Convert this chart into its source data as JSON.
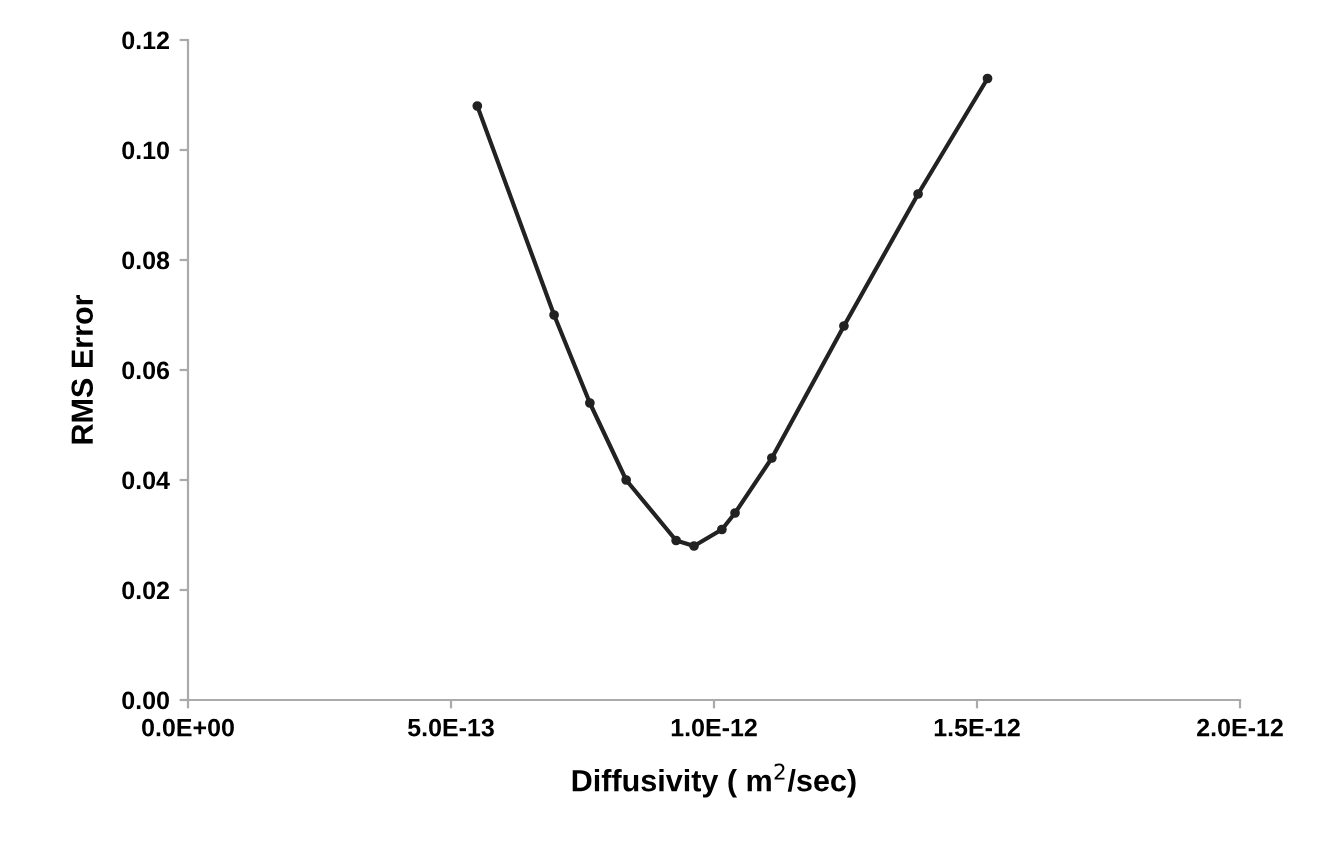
{
  "chart_data": {
    "type": "line",
    "xlabel": "Diffusivity ( m$^{2}$/sec)",
    "ylabel": "RMS Error",
    "x": [
      5.5e-13,
      6.96e-13,
      7.64e-13,
      8.33e-13,
      9.28e-13,
      9.62e-13,
      1.015e-12,
      1.04e-12,
      1.11e-12,
      1.247e-12,
      1.388e-12,
      1.52e-12
    ],
    "series": [
      {
        "color": "#222222",
        "values": [
          0.108,
          0.07,
          0.054,
          0.04,
          0.029,
          0.028,
          0.031,
          0.034,
          0.044,
          0.068,
          0.092,
          0.113
        ]
      }
    ],
    "xlim": [
      0,
      2e-12
    ],
    "xticks": [
      {
        "value": 0,
        "label": "0.0E+00"
      },
      {
        "value": 5e-13,
        "label": "5.0E-13"
      },
      {
        "value": 1e-12,
        "label": "1.0E-12"
      },
      {
        "value": 1.5e-12,
        "label": "1.5E-12"
      },
      {
        "value": 2e-12,
        "label": "2.0E-12"
      }
    ],
    "ylim": [
      0,
      0.12
    ],
    "yticks": [
      {
        "value": 0,
        "label": "0.00"
      },
      {
        "value": 0.02,
        "label": "0.02"
      },
      {
        "value": 0.04,
        "label": "0.04"
      },
      {
        "value": 0.06,
        "label": "0.06"
      },
      {
        "value": 0.08,
        "label": "0.08"
      },
      {
        "value": 0.1,
        "label": "0.10"
      },
      {
        "value": 0.12,
        "label": "0.12"
      }
    ],
    "marker": "circle",
    "line_style": "solid",
    "grid": false,
    "legend": false
  }
}
